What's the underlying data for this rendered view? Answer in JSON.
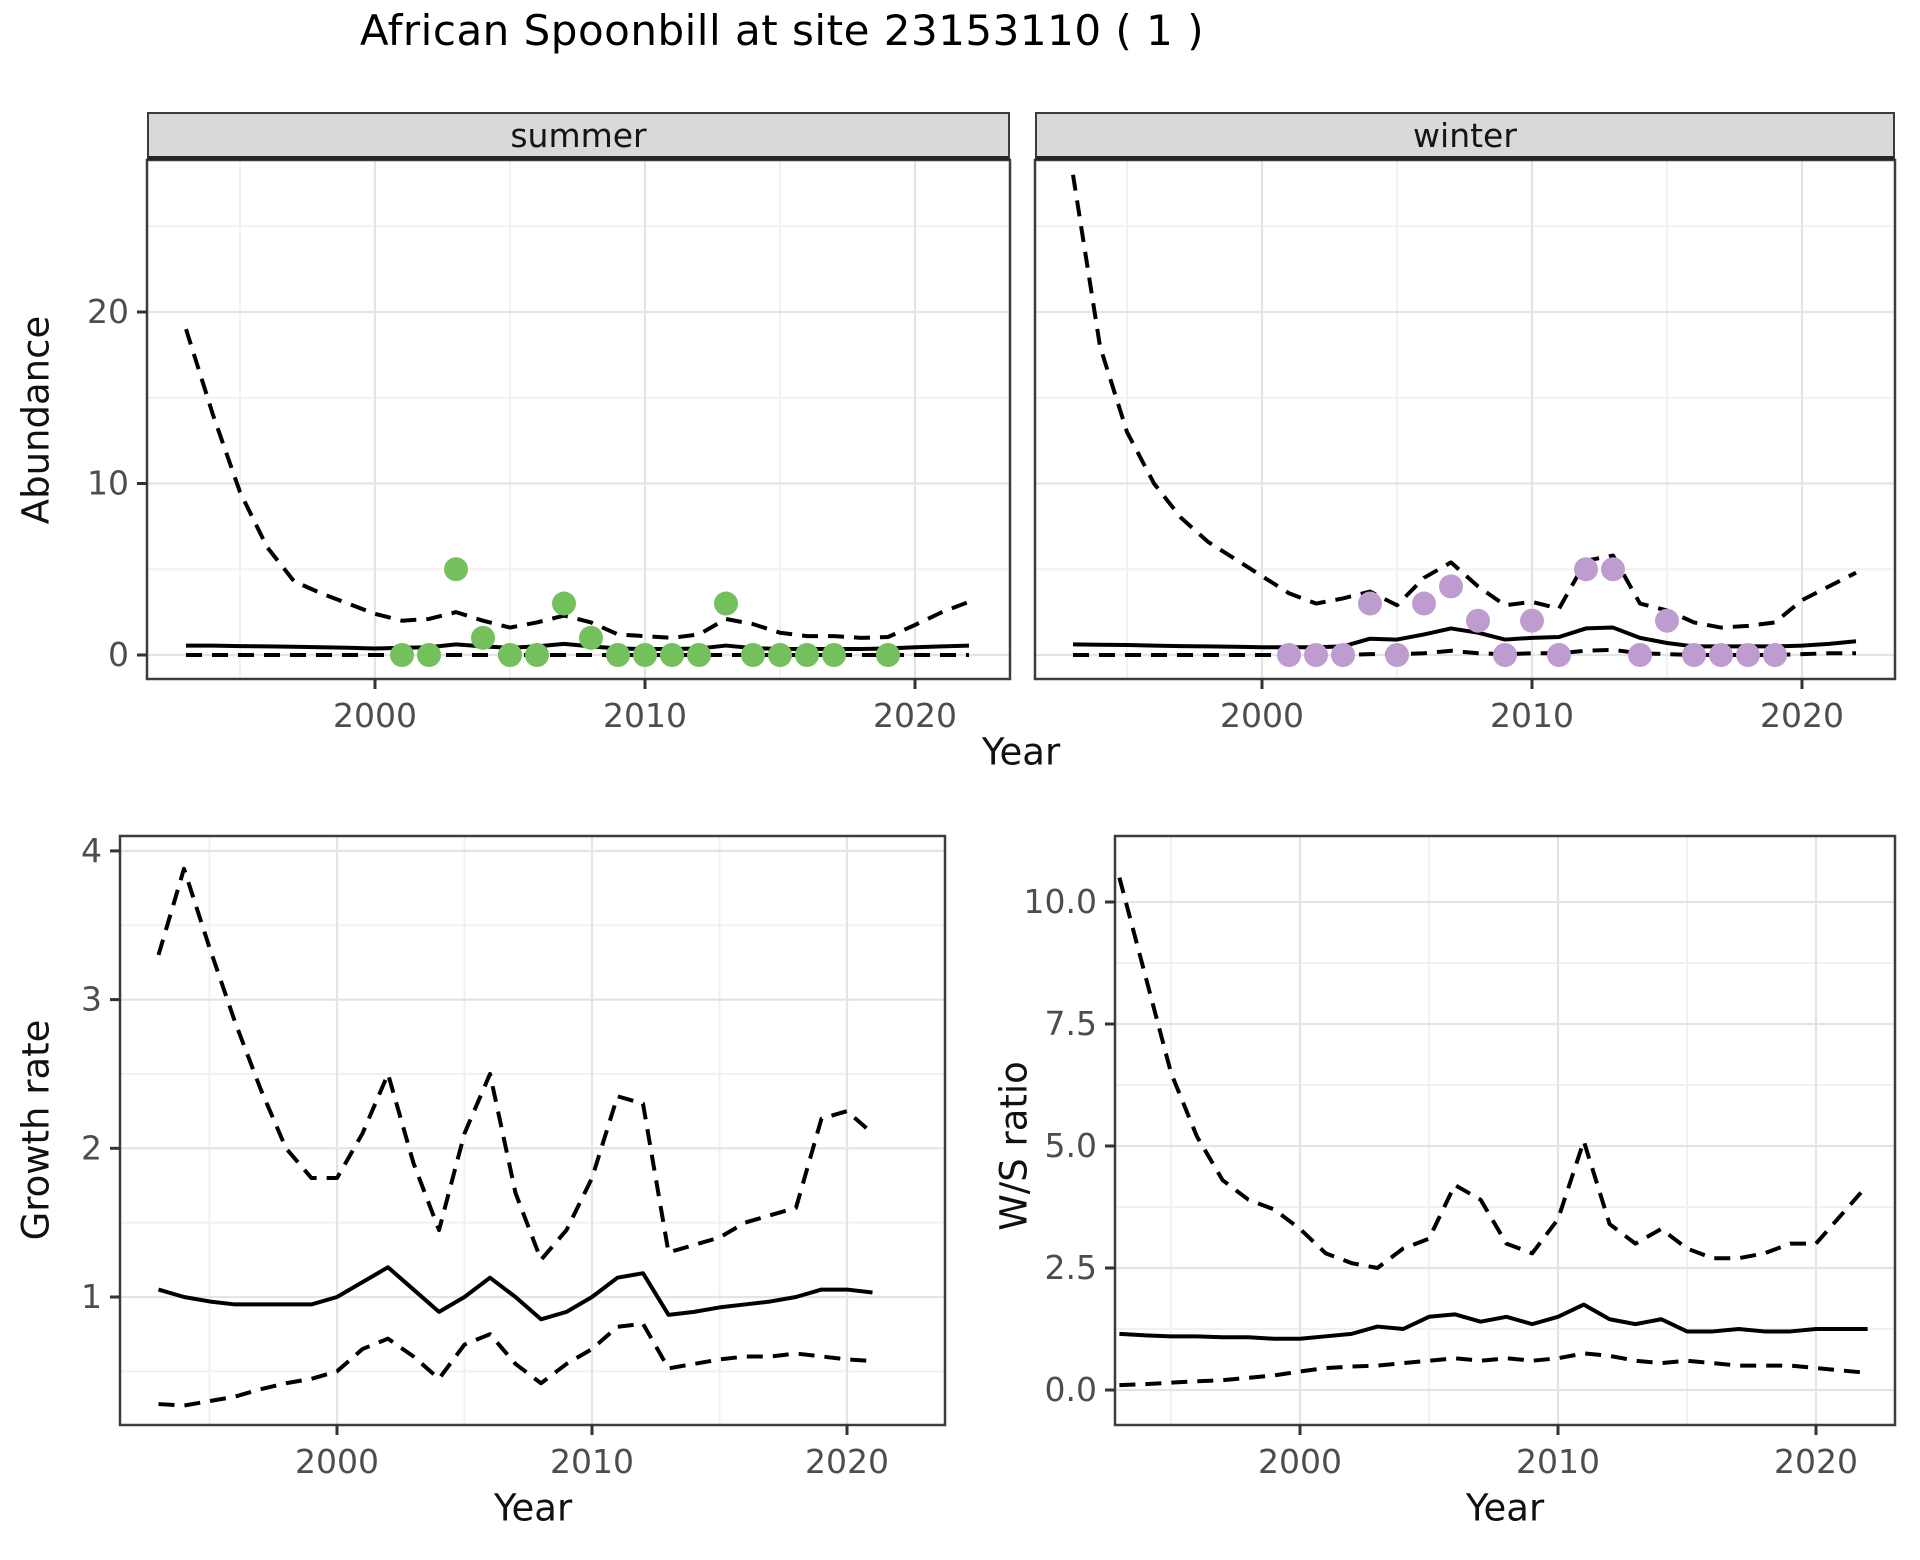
{
  "title": "African Spoonbill at site 23153110 ( 1 )",
  "facets": [
    {
      "label": "summer"
    },
    {
      "label": "winter"
    }
  ],
  "axis_titles": {
    "abundance": "Abundance",
    "year_top": "Year",
    "growth_rate": "Growth rate",
    "year_bottom_left": "Year",
    "ws_ratio": "W/S ratio",
    "year_bottom_right": "Year"
  },
  "colors": {
    "summer_point": "#74C05C",
    "winter_point": "#BF9CCF",
    "line": "#000000",
    "panel_border": "#3c3c3c",
    "tick": "#333333",
    "tick_label": "#4d4d4d",
    "grid_major": "#E4E4E4",
    "grid_minor": "#F1F1F1",
    "strip_bg": "#D9D9D9"
  },
  "chart_data": [
    {
      "id": "summer",
      "type": "line",
      "facet_label": "summer",
      "xlabel": "Year",
      "ylabel": "Abundance",
      "xlim": [
        1991.5,
        2023.5
      ],
      "ylim": [
        -1.4,
        28.9
      ],
      "xticks": [
        2000,
        2010,
        2020
      ],
      "xtick_labels": [
        "2000",
        "2010",
        "2020"
      ],
      "xticks_minor": [
        1995,
        2005,
        2015
      ],
      "yticks": [
        0,
        10,
        20
      ],
      "ytick_labels": [
        "0",
        "10",
        "20"
      ],
      "yticks_minor": [
        5,
        15,
        25
      ],
      "grid": true,
      "years": [
        1993,
        1994,
        1995,
        1996,
        1997,
        1998,
        1999,
        2000,
        2001,
        2002,
        2003,
        2004,
        2005,
        2006,
        2007,
        2008,
        2009,
        2010,
        2011,
        2012,
        2013,
        2014,
        2015,
        2016,
        2017,
        2018,
        2019,
        2020,
        2021,
        2022
      ],
      "series": [
        {
          "name": "upper_ci",
          "style": "dashed",
          "values": [
            19,
            14,
            9.5,
            6.3,
            4.3,
            3.6,
            3.0,
            2.4,
            2.0,
            2.1,
            2.5,
            2.0,
            1.6,
            1.9,
            2.3,
            1.9,
            1.2,
            1.1,
            1.0,
            1.2,
            2.1,
            1.8,
            1.3,
            1.1,
            1.1,
            1.0,
            1.05,
            1.75,
            2.5,
            3.1
          ]
        },
        {
          "name": "median",
          "style": "solid",
          "values": [
            0.55,
            0.55,
            0.52,
            0.5,
            0.48,
            0.45,
            0.42,
            0.38,
            0.42,
            0.45,
            0.62,
            0.5,
            0.42,
            0.5,
            0.65,
            0.5,
            0.38,
            0.35,
            0.35,
            0.38,
            0.55,
            0.4,
            0.35,
            0.35,
            0.35,
            0.35,
            0.38,
            0.45,
            0.5,
            0.55
          ]
        },
        {
          "name": "lower_ci",
          "style": "dashed",
          "values": [
            0,
            0,
            0,
            0,
            0,
            0,
            0,
            0,
            0,
            0,
            0,
            0,
            0,
            0,
            0,
            0,
            0,
            0,
            0,
            0,
            0,
            0,
            0,
            0,
            0,
            0,
            0,
            0,
            0,
            0
          ]
        }
      ],
      "points": {
        "name": "observed_counts",
        "color": "#74C05C",
        "years": [
          2001,
          2002,
          2003,
          2004,
          2005,
          2006,
          2007,
          2008,
          2009,
          2010,
          2011,
          2012,
          2013,
          2014,
          2015,
          2016,
          2017,
          2019
        ],
        "values": [
          0,
          0,
          5,
          1,
          0,
          0,
          3,
          1,
          0,
          0,
          0,
          0,
          3,
          0,
          0,
          0,
          0,
          0
        ]
      }
    },
    {
      "id": "winter",
      "type": "line",
      "facet_label": "winter",
      "xlabel": "Year",
      "ylabel": "Abundance",
      "xlim": [
        1991.5,
        2023.5
      ],
      "ylim": [
        -1.4,
        28.9
      ],
      "xticks": [
        2000,
        2010,
        2020
      ],
      "xtick_labels": [
        "2000",
        "2010",
        "2020"
      ],
      "xticks_minor": [
        1995,
        2005,
        2015
      ],
      "yticks": [
        0,
        10,
        20
      ],
      "ytick_labels": [
        "0",
        "10",
        "20"
      ],
      "yticks_minor": [
        5,
        15,
        25
      ],
      "grid": true,
      "years": [
        1993,
        1994,
        1995,
        1996,
        1997,
        1998,
        1999,
        2000,
        2001,
        2002,
        2003,
        2004,
        2005,
        2006,
        2007,
        2008,
        2009,
        2010,
        2011,
        2012,
        2013,
        2014,
        2015,
        2016,
        2017,
        2018,
        2019,
        2020,
        2021,
        2022
      ],
      "series": [
        {
          "name": "upper_ci",
          "style": "dashed",
          "values": [
            28,
            18,
            13,
            10,
            8,
            6.6,
            5.6,
            4.6,
            3.6,
            3.0,
            3.3,
            3.7,
            2.9,
            4.5,
            5.4,
            4.0,
            2.9,
            3.1,
            2.7,
            5.5,
            5.8,
            3.0,
            2.6,
            1.9,
            1.6,
            1.7,
            1.9,
            3.2,
            4.0,
            4.8
          ]
        },
        {
          "name": "median",
          "style": "solid",
          "values": [
            0.62,
            0.6,
            0.58,
            0.55,
            0.52,
            0.5,
            0.48,
            0.45,
            0.45,
            0.45,
            0.5,
            0.95,
            0.9,
            1.2,
            1.55,
            1.3,
            0.9,
            1.0,
            1.05,
            1.55,
            1.6,
            1.0,
            0.7,
            0.5,
            0.5,
            0.5,
            0.5,
            0.55,
            0.65,
            0.8
          ]
        },
        {
          "name": "lower_ci",
          "style": "dashed",
          "values": [
            0,
            0,
            0,
            0,
            0,
            0,
            0,
            0,
            0,
            0,
            0,
            0.05,
            0.05,
            0.1,
            0.25,
            0.1,
            0.05,
            0.1,
            0.1,
            0.25,
            0.3,
            0.1,
            0.05,
            0,
            0,
            0,
            0,
            0.05,
            0.1,
            0.1
          ]
        }
      ],
      "points": {
        "name": "observed_counts",
        "color": "#BF9CCF",
        "years": [
          2001,
          2002,
          2003,
          2004,
          2005,
          2006,
          2007,
          2008,
          2009,
          2010,
          2011,
          2012,
          2013,
          2014,
          2015,
          2016,
          2017,
          2018,
          2019
        ],
        "values": [
          0,
          0,
          0,
          3,
          0,
          3,
          4,
          2,
          0,
          2,
          0,
          5,
          5,
          0,
          2,
          0,
          0,
          0,
          0
        ]
      }
    },
    {
      "id": "growth",
      "type": "line",
      "xlabel": "Year",
      "ylabel": "Growth rate",
      "xlim": [
        1991.5,
        2023.8
      ],
      "ylim": [
        0.14,
        4.1
      ],
      "xticks": [
        2000,
        2010,
        2020
      ],
      "xtick_labels": [
        "2000",
        "2010",
        "2020"
      ],
      "xticks_minor": [
        1995,
        2005,
        2015
      ],
      "yticks": [
        1,
        2,
        3,
        4
      ],
      "ytick_labels": [
        "1",
        "2",
        "3",
        "4"
      ],
      "yticks_minor": [
        0.5,
        1.5,
        2.5,
        3.5
      ],
      "grid": true,
      "years": [
        1993,
        1994,
        1995,
        1996,
        1997,
        1998,
        1999,
        2000,
        2001,
        2002,
        2003,
        2004,
        2005,
        2006,
        2007,
        2008,
        2009,
        2010,
        2011,
        2012,
        2013,
        2014,
        2015,
        2016,
        2017,
        2018,
        2019,
        2020,
        2021
      ],
      "series": [
        {
          "name": "upper_ci",
          "style": "dashed",
          "values": [
            3.3,
            3.88,
            3.35,
            2.85,
            2.4,
            2.0,
            1.8,
            1.8,
            2.1,
            2.5,
            1.9,
            1.45,
            2.1,
            2.5,
            1.7,
            1.25,
            1.45,
            1.8,
            2.35,
            2.3,
            1.3,
            1.35,
            1.4,
            1.5,
            1.55,
            1.6,
            2.2,
            2.25,
            2.1
          ]
        },
        {
          "name": "median",
          "style": "solid",
          "values": [
            1.05,
            1.0,
            0.97,
            0.95,
            0.95,
            0.95,
            0.95,
            1.0,
            1.1,
            1.2,
            1.05,
            0.9,
            1.0,
            1.13,
            1.0,
            0.85,
            0.9,
            1.0,
            1.13,
            1.16,
            0.88,
            0.9,
            0.93,
            0.95,
            0.97,
            1.0,
            1.05,
            1.05,
            1.03
          ]
        },
        {
          "name": "lower_ci",
          "style": "dashed",
          "values": [
            0.28,
            0.27,
            0.3,
            0.33,
            0.38,
            0.42,
            0.45,
            0.5,
            0.65,
            0.72,
            0.6,
            0.45,
            0.68,
            0.75,
            0.55,
            0.42,
            0.55,
            0.65,
            0.8,
            0.82,
            0.52,
            0.55,
            0.58,
            0.6,
            0.6,
            0.62,
            0.6,
            0.58,
            0.57
          ]
        }
      ],
      "points": null
    },
    {
      "id": "ws",
      "type": "line",
      "xlabel": "Year",
      "ylabel": "W/S ratio",
      "xlim": [
        1992.8,
        2023.2
      ],
      "ylim": [
        -0.7,
        11.35
      ],
      "xticks": [
        2000,
        2010,
        2020
      ],
      "xtick_labels": [
        "2000",
        "2010",
        "2020"
      ],
      "xticks_minor": [
        1995,
        2005,
        2015
      ],
      "yticks": [
        0,
        2.5,
        5,
        7.5,
        10
      ],
      "ytick_labels": [
        "0.0",
        "2.5",
        "5.0",
        "7.5",
        "10.0"
      ],
      "yticks_minor": [
        1.25,
        3.75,
        6.25,
        8.75
      ],
      "grid": true,
      "years": [
        1993,
        1994,
        1995,
        1996,
        1997,
        1998,
        1999,
        2000,
        2001,
        2002,
        2003,
        2004,
        2005,
        2006,
        2007,
        2008,
        2009,
        2010,
        2011,
        2012,
        2013,
        2014,
        2015,
        2016,
        2017,
        2018,
        2019,
        2020,
        2021,
        2022
      ],
      "series": [
        {
          "name": "upper_ci",
          "style": "dashed",
          "values": [
            10.5,
            8.5,
            6.5,
            5.2,
            4.3,
            3.9,
            3.7,
            3.3,
            2.8,
            2.6,
            2.5,
            2.9,
            3.1,
            4.2,
            3.9,
            3.0,
            2.8,
            3.5,
            5.1,
            3.4,
            3.0,
            3.3,
            2.9,
            2.7,
            2.7,
            2.8,
            3.0,
            3.0,
            3.6,
            4.2
          ]
        },
        {
          "name": "median",
          "style": "solid",
          "values": [
            1.15,
            1.12,
            1.1,
            1.1,
            1.08,
            1.08,
            1.05,
            1.05,
            1.1,
            1.15,
            1.3,
            1.25,
            1.5,
            1.55,
            1.4,
            1.5,
            1.35,
            1.5,
            1.75,
            1.45,
            1.35,
            1.45,
            1.2,
            1.2,
            1.25,
            1.2,
            1.2,
            1.25,
            1.25,
            1.25
          ]
        },
        {
          "name": "lower_ci",
          "style": "dashed",
          "values": [
            0.1,
            0.12,
            0.15,
            0.18,
            0.2,
            0.25,
            0.3,
            0.38,
            0.45,
            0.48,
            0.5,
            0.55,
            0.6,
            0.65,
            0.6,
            0.65,
            0.6,
            0.65,
            0.75,
            0.7,
            0.6,
            0.55,
            0.6,
            0.55,
            0.5,
            0.5,
            0.5,
            0.45,
            0.4,
            0.35
          ]
        }
      ],
      "points": null
    }
  ]
}
